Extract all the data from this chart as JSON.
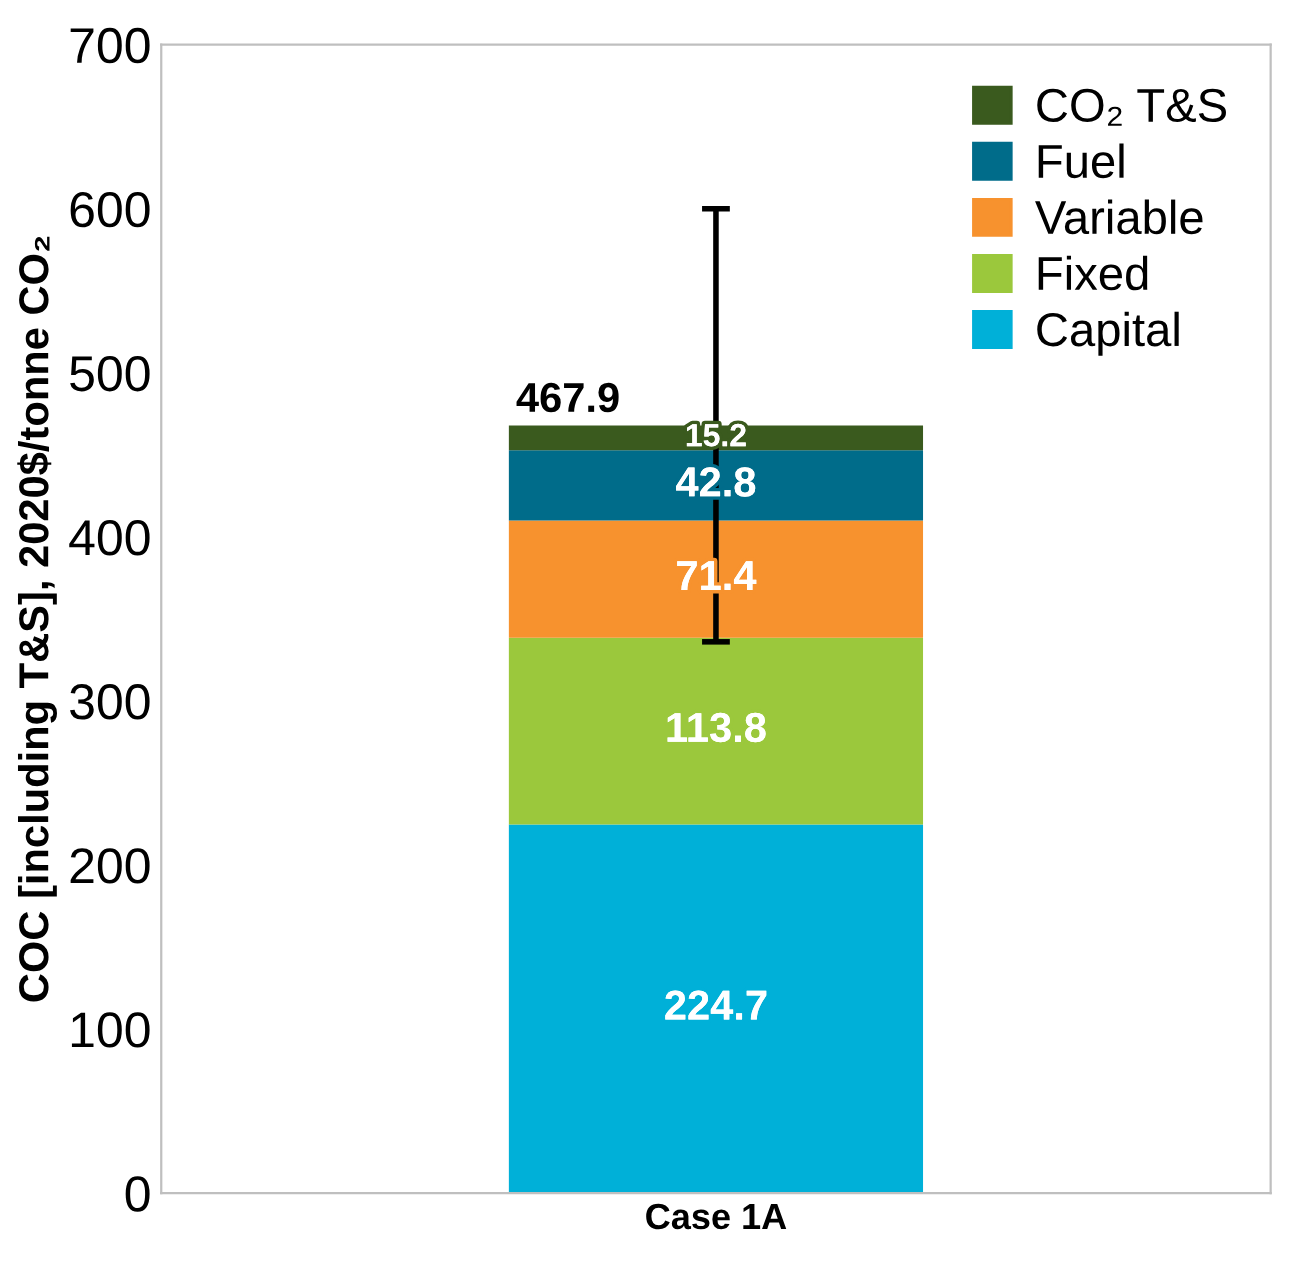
{
  "chart_data": {
    "type": "bar",
    "stacked": true,
    "categories": [
      "Case 1A"
    ],
    "ylabel": "COC [including T&S], 2020$/tonne CO₂",
    "series": [
      {
        "name": "Capital",
        "color": "#00b0d8",
        "values": [
          224.7
        ]
      },
      {
        "name": "Fixed",
        "color": "#9bc83c",
        "values": [
          113.8
        ]
      },
      {
        "name": "Variable",
        "color": "#f7922e",
        "values": [
          71.4
        ]
      },
      {
        "name": "Fuel",
        "color": "#006c8a",
        "values": [
          42.8
        ]
      },
      {
        "name": "CO₂ T&S",
        "color": "#3a5a1e",
        "values": [
          15.2
        ],
        "errors": [
          [
            336,
            600
          ]
        ]
      }
    ],
    "totals": [
      "467.9"
    ],
    "data_labels": true,
    "ylim": [
      0,
      700
    ],
    "yticks": [
      0,
      100,
      200,
      300,
      400,
      500,
      600,
      700
    ],
    "grid": false,
    "legend": "top right"
  }
}
